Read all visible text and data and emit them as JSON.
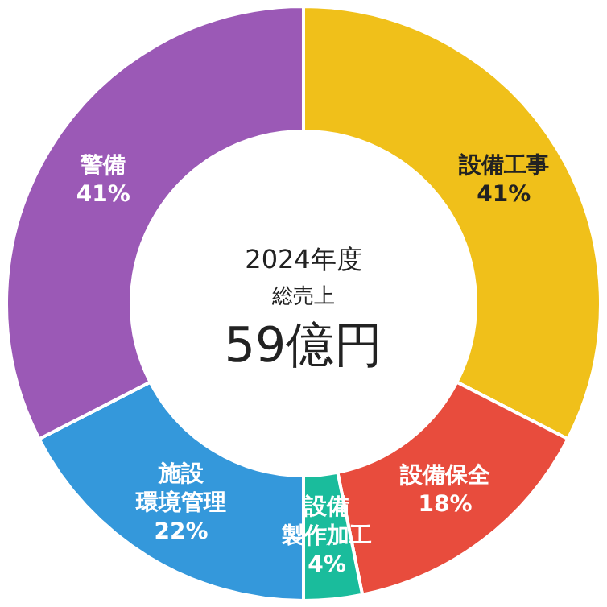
{
  "chart_data": {
    "type": "donut",
    "categories": [
      "設備工事",
      "設備保全",
      "設備製作加工",
      "施設環境管理",
      "警備"
    ],
    "values": [
      41,
      18,
      4,
      22,
      41
    ],
    "value_labels": [
      "41%",
      "18%",
      "4%",
      "22%",
      "41%"
    ],
    "colors": [
      "#f0c01a",
      "#e84c3d",
      "#1abc9c",
      "#3498db",
      "#9b59b6"
    ],
    "annotations": [
      "2024年度",
      "総売上",
      "59億円"
    ],
    "legend": false
  }
}
